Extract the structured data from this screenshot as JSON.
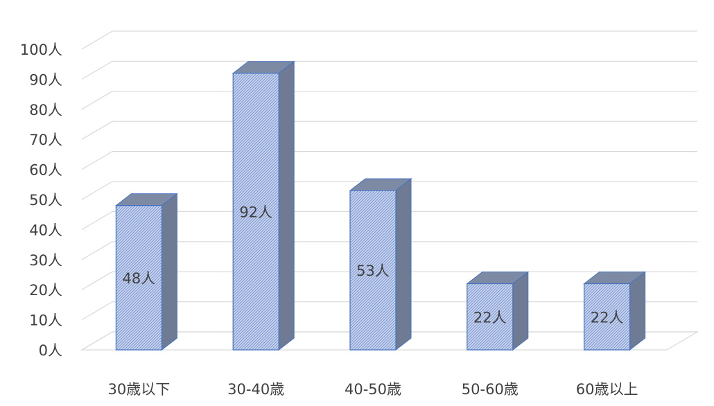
{
  "chart_data": {
    "type": "bar",
    "categories": [
      "30歳以下",
      "30-40歳",
      "40-50歳",
      "50-60歳",
      "60歳以上"
    ],
    "values": [
      48,
      92,
      53,
      22,
      22
    ],
    "data_labels": [
      "48人",
      "92人",
      "53人",
      "22人",
      "22人"
    ],
    "y_ticks": [
      0,
      10,
      20,
      30,
      40,
      50,
      60,
      70,
      80,
      90,
      100
    ],
    "y_tick_labels": [
      "0人",
      "10人",
      "20人",
      "30人",
      "40人",
      "50人",
      "60人",
      "70人",
      "80人",
      "90人",
      "100人"
    ],
    "ylim": [
      0,
      100
    ],
    "title": "",
    "xlabel": "",
    "ylabel": "",
    "grid": true,
    "legend": "none",
    "three_d": true,
    "colors": {
      "bar_front": "#c9d5ef",
      "bar_pattern": "#7d97cf",
      "bar_top": "#7d8aa3",
      "bar_side": "#6e7b93",
      "bar_edge": "#4472c4",
      "grid": "#d9d9d9",
      "text": "#404040"
    }
  }
}
